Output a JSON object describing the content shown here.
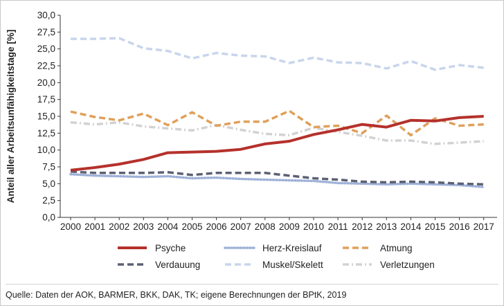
{
  "chart_data": {
    "type": "line",
    "title": "",
    "xlabel": "",
    "ylabel": "Anteil aller Arbeitsunfähigkeitstage [%]",
    "ylim": [
      0,
      30
    ],
    "yticks": [
      "0,0",
      "2,5",
      "5,0",
      "7,5",
      "10,0",
      "12,5",
      "15,0",
      "17,5",
      "20,0",
      "22,5",
      "25,0",
      "27,5",
      "30,0"
    ],
    "categories": [
      "2000",
      "2001",
      "2002",
      "2003",
      "2004",
      "2005",
      "2006",
      "2007",
      "2008",
      "2009",
      "2010",
      "2011",
      "2012",
      "2013",
      "2014",
      "2015",
      "2016",
      "2017"
    ],
    "series": [
      {
        "name": "Psyche",
        "color": "#b5312c",
        "style": "solid",
        "values": [
          7.0,
          7.4,
          7.9,
          8.6,
          9.6,
          9.7,
          9.8,
          10.1,
          10.9,
          11.3,
          12.3,
          13.0,
          13.8,
          13.4,
          14.4,
          14.3,
          14.8,
          15.0
        ]
      },
      {
        "name": "Herz-Kreislauf",
        "color": "#9fb1d8",
        "style": "dotted",
        "values": [
          6.4,
          6.2,
          6.1,
          6.0,
          6.1,
          5.8,
          5.9,
          5.7,
          5.6,
          5.5,
          5.4,
          5.1,
          5.0,
          4.9,
          5.0,
          4.9,
          4.8,
          4.5
        ]
      },
      {
        "name": "Atmung",
        "color": "#dfa05a",
        "style": "dashed",
        "values": [
          15.7,
          14.9,
          14.4,
          15.4,
          13.7,
          15.6,
          13.6,
          14.2,
          14.2,
          15.8,
          13.4,
          13.6,
          12.5,
          15.1,
          12.2,
          14.7,
          13.6,
          13.8
        ]
      },
      {
        "name": "Verdauung",
        "color": "#5b6073",
        "style": "dashed",
        "values": [
          6.8,
          6.6,
          6.6,
          6.6,
          6.7,
          6.3,
          6.6,
          6.6,
          6.6,
          6.2,
          5.8,
          5.6,
          5.3,
          5.2,
          5.3,
          5.2,
          5.0,
          4.9
        ]
      },
      {
        "name": "Muskel/Skelett",
        "color": "#c8d5ec",
        "style": "dashed",
        "values": [
          26.5,
          26.5,
          26.6,
          25.1,
          24.7,
          23.6,
          24.4,
          24.0,
          23.9,
          22.9,
          23.7,
          23.0,
          22.9,
          22.1,
          23.2,
          21.9,
          22.6,
          22.2
        ]
      },
      {
        "name": "Verletzungen",
        "color": "#d2d2d2",
        "style": "dashdot",
        "values": [
          14.1,
          13.8,
          14.1,
          13.5,
          13.2,
          12.9,
          13.7,
          13.0,
          12.4,
          12.2,
          13.3,
          12.7,
          12.1,
          11.4,
          11.4,
          10.9,
          11.1,
          11.3
        ]
      }
    ],
    "grid": false,
    "legend_position": "bottom"
  },
  "source_note": "Quelle: Daten der AOK, BARMER, BKK, DAK, TK; eigene Berechnungen der BPtK, 2019"
}
